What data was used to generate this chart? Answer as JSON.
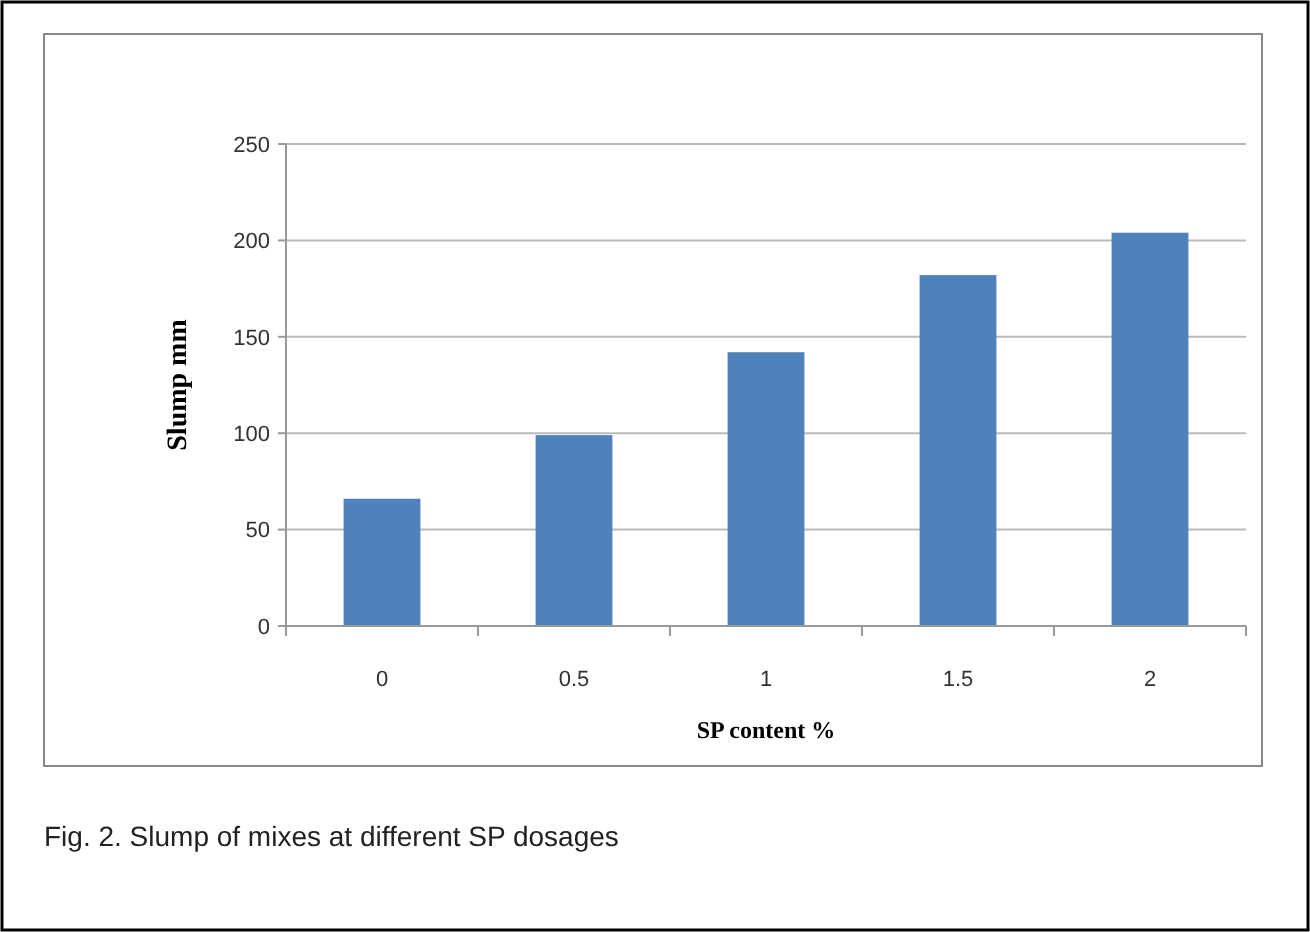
{
  "chart_data": {
    "type": "bar",
    "categories": [
      "0",
      "0.5",
      "1",
      "1.5",
      "2"
    ],
    "values": [
      66,
      99,
      142,
      182,
      204
    ],
    "color": "#4f81bd",
    "xlabel": "SP content %",
    "ylabel": "Slump mm",
    "ylim": [
      0,
      250
    ],
    "yticks": [
      0,
      50,
      100,
      150,
      200,
      250
    ],
    "grid": "y",
    "annotations": [
      "Fig. 2. Slump of mixes at different SP dosages"
    ]
  }
}
